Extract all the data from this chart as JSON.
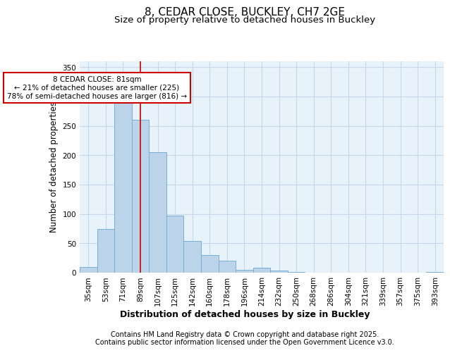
{
  "title1": "8, CEDAR CLOSE, BUCKLEY, CH7 2GE",
  "title2": "Size of property relative to detached houses in Buckley",
  "xlabel": "Distribution of detached houses by size in Buckley",
  "ylabel": "Number of detached properties",
  "categories": [
    "35sqm",
    "53sqm",
    "71sqm",
    "89sqm",
    "107sqm",
    "125sqm",
    "142sqm",
    "160sqm",
    "178sqm",
    "196sqm",
    "214sqm",
    "232sqm",
    "250sqm",
    "268sqm",
    "286sqm",
    "304sqm",
    "321sqm",
    "339sqm",
    "357sqm",
    "375sqm",
    "393sqm"
  ],
  "values": [
    10,
    75,
    290,
    260,
    205,
    97,
    54,
    30,
    20,
    5,
    8,
    4,
    1,
    0,
    0,
    0,
    0,
    0,
    0,
    0,
    1
  ],
  "bar_color": "#bcd4ea",
  "bar_edge_color": "#7aaed4",
  "grid_color": "#c5d8ea",
  "bg_color": "#e8f2fb",
  "annotation_box_text": "8 CEDAR CLOSE: 81sqm\n← 21% of detached houses are smaller (225)\n78% of semi-detached houses are larger (816) →",
  "annotation_box_color": "#cc0000",
  "vline_x": 3,
  "vline_color": "#cc0000",
  "ylim": [
    0,
    360
  ],
  "yticks": [
    0,
    50,
    100,
    150,
    200,
    250,
    300,
    350
  ],
  "footer1": "Contains HM Land Registry data © Crown copyright and database right 2025.",
  "footer2": "Contains public sector information licensed under the Open Government Licence v3.0.",
  "title_fontsize": 11,
  "subtitle_fontsize": 9.5,
  "tick_fontsize": 7.5,
  "ylabel_fontsize": 8.5,
  "xlabel_fontsize": 9,
  "footer_fontsize": 7
}
